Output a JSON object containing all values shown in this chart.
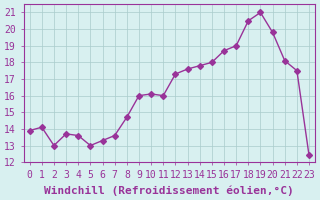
{
  "x": [
    0,
    1,
    2,
    3,
    4,
    5,
    6,
    7,
    8,
    9,
    10,
    11,
    12,
    13,
    14,
    15,
    16,
    17,
    18,
    19,
    20,
    21,
    22,
    23
  ],
  "y": [
    13.9,
    14.1,
    13.0,
    13.7,
    13.6,
    13.0,
    13.3,
    13.6,
    14.7,
    16.0,
    16.1,
    16.0,
    17.3,
    17.6,
    17.8,
    18.0,
    18.7,
    19.0,
    20.5,
    21.0,
    19.8,
    18.1,
    17.5,
    12.4
  ],
  "line_color": "#993399",
  "marker": "D",
  "markersize": 3,
  "linewidth": 1.0,
  "bg_color": "#d8f0f0",
  "grid_color": "#aacccc",
  "xlabel": "Windchill (Refroidissement éolien,°C)",
  "xlabel_fontsize": 8,
  "tick_color": "#993399",
  "tick_fontsize": 7,
  "ylim": [
    12,
    21.5
  ],
  "yticks": [
    12,
    13,
    14,
    15,
    16,
    17,
    18,
    19,
    20,
    21
  ]
}
